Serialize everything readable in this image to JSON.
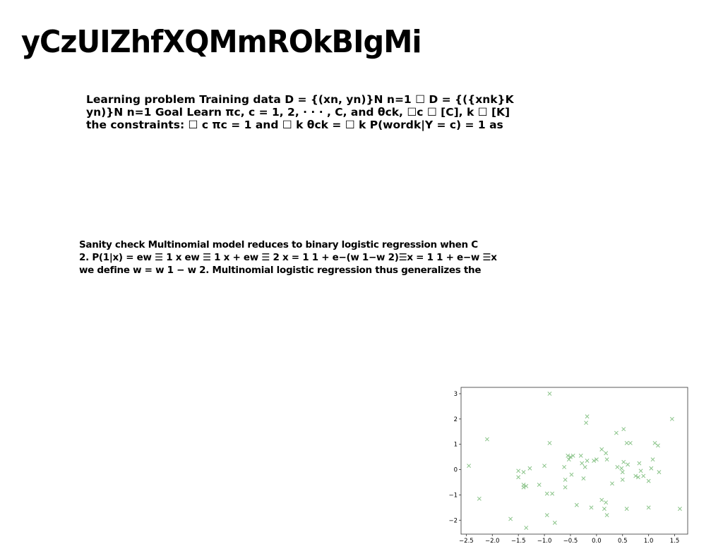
{
  "page": {
    "title": "yCzUIZhfXQMmROkBIgMi"
  },
  "paragraph_1": {
    "lines": [
      "Learning problem Training data D = {(xn, yn)}N n=1 ☐ D = {({xnk}K",
      "yn)}N n=1 Goal Learn πc, c = 1, 2, · · · , C, and θck, ☐c ☐ [C], k ☐ [K]",
      "the constraints: ☐ c πc = 1 and ☐ k θck = ☐ k P(wordk|Y = c) = 1 as"
    ]
  },
  "paragraph_2": {
    "lines": [
      "Sanity check Multinomial model reduces to binary logistic regression when C",
      "2. P(1|x) = ew ☰ 1 x ew ☰ 1 x + ew ☰ 2 x = 1 1 + e−(w 1−w 2)☰x = 1 1 + e−w ☰x",
      "we define w = w 1 − w 2. Multinomial logistic regression thus generalizes the"
    ]
  },
  "chart_data": {
    "type": "scatter",
    "marker": "x",
    "color": "#8bc48a",
    "xlim": [
      -2.6,
      1.75
    ],
    "ylim": [
      -2.55,
      3.25
    ],
    "xticks": [
      -2.5,
      -2.0,
      -1.5,
      -1.0,
      -0.5,
      0.0,
      0.5,
      1.0,
      1.5
    ],
    "xtick_labels": [
      "−2.5",
      "−2.0",
      "−1.5",
      "−1.0",
      "−0.5",
      "0.0",
      "0.5",
      "1.0",
      "1.5"
    ],
    "yticks": [
      -2,
      -1,
      0,
      1,
      2,
      3
    ],
    "ytick_labels": [
      "−2",
      "−1",
      "0",
      "1",
      "2",
      "3"
    ],
    "grid": false,
    "title": "",
    "xlabel": "",
    "ylabel": "",
    "points": [
      [
        -2.45,
        0.15
      ],
      [
        -2.25,
        -1.15
      ],
      [
        -2.1,
        1.2
      ],
      [
        -1.65,
        -1.95
      ],
      [
        -1.5,
        -0.3
      ],
      [
        -1.5,
        -0.05
      ],
      [
        -1.4,
        -0.6
      ],
      [
        -1.4,
        -0.7
      ],
      [
        -1.4,
        -0.1
      ],
      [
        -1.35,
        -0.65
      ],
      [
        -1.35,
        -2.3
      ],
      [
        -1.28,
        0.05
      ],
      [
        -1.1,
        -0.6
      ],
      [
        -1.0,
        0.15
      ],
      [
        -0.95,
        -0.95
      ],
      [
        -0.95,
        -1.8
      ],
      [
        -0.9,
        3.0
      ],
      [
        -0.9,
        1.05
      ],
      [
        -0.85,
        -0.95
      ],
      [
        -0.8,
        -2.1
      ],
      [
        -0.62,
        0.1
      ],
      [
        -0.6,
        -0.4
      ],
      [
        -0.6,
        -0.7
      ],
      [
        -0.55,
        0.55
      ],
      [
        -0.53,
        0.4
      ],
      [
        -0.5,
        0.5
      ],
      [
        -0.48,
        -0.2
      ],
      [
        -0.45,
        0.55
      ],
      [
        -0.38,
        -1.4
      ],
      [
        -0.3,
        0.55
      ],
      [
        -0.28,
        0.25
      ],
      [
        -0.25,
        -0.35
      ],
      [
        -0.22,
        0.1
      ],
      [
        -0.2,
        1.85
      ],
      [
        -0.18,
        2.1
      ],
      [
        -0.18,
        0.35
      ],
      [
        -0.1,
        -1.5
      ],
      [
        -0.05,
        0.35
      ],
      [
        0.0,
        0.4
      ],
      [
        0.1,
        0.8
      ],
      [
        0.1,
        -1.2
      ],
      [
        0.15,
        -1.55
      ],
      [
        0.18,
        -1.3
      ],
      [
        0.18,
        0.65
      ],
      [
        0.2,
        0.4
      ],
      [
        0.2,
        -1.8
      ],
      [
        0.3,
        -0.55
      ],
      [
        0.38,
        1.45
      ],
      [
        0.4,
        0.1
      ],
      [
        0.48,
        0.05
      ],
      [
        0.5,
        -0.1
      ],
      [
        0.5,
        -0.4
      ],
      [
        0.52,
        0.3
      ],
      [
        0.52,
        1.6
      ],
      [
        0.58,
        1.05
      ],
      [
        0.58,
        -1.55
      ],
      [
        0.6,
        0.2
      ],
      [
        0.65,
        1.05
      ],
      [
        0.75,
        -0.25
      ],
      [
        0.8,
        -0.3
      ],
      [
        0.82,
        0.25
      ],
      [
        0.85,
        -0.05
      ],
      [
        0.9,
        -0.25
      ],
      [
        1.0,
        -0.45
      ],
      [
        1.0,
        -1.5
      ],
      [
        1.05,
        0.05
      ],
      [
        1.08,
        0.4
      ],
      [
        1.12,
        1.05
      ],
      [
        1.18,
        0.95
      ],
      [
        1.2,
        -0.1
      ],
      [
        1.45,
        2.0
      ],
      [
        1.6,
        -1.55
      ]
    ]
  }
}
